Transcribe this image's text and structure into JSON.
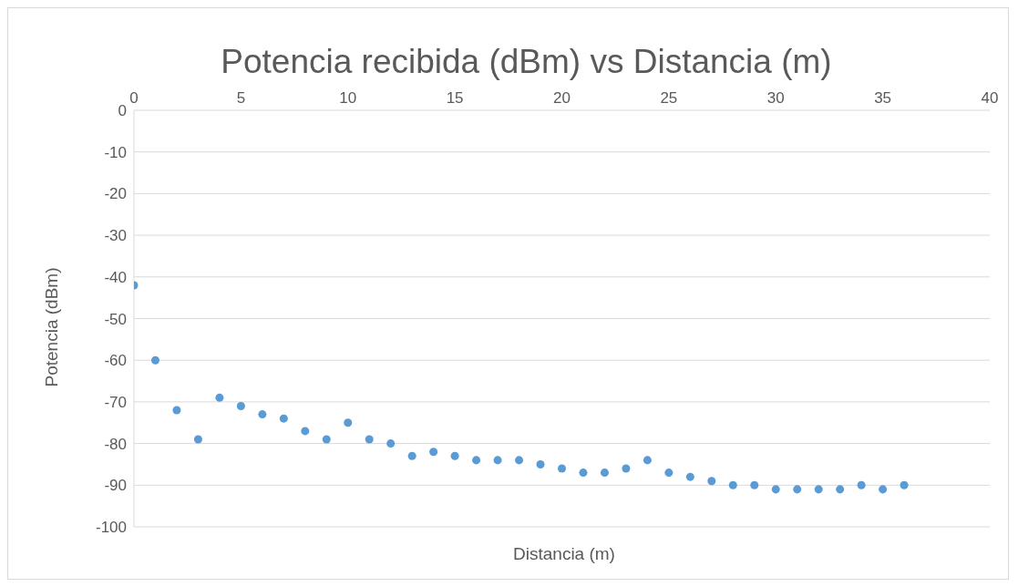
{
  "chart_data": {
    "type": "scatter",
    "title": "Potencia recibida (dBm) vs Distancia (m)",
    "xlabel": "Distancia (m)",
    "ylabel": "Potencia (dBm)",
    "x": [
      0,
      1,
      2,
      3,
      4,
      5,
      6,
      7,
      8,
      9,
      10,
      11,
      12,
      13,
      14,
      15,
      16,
      17,
      18,
      19,
      20,
      21,
      22,
      23,
      24,
      25,
      26,
      27,
      28,
      29,
      30,
      31,
      32,
      33,
      34,
      35,
      36
    ],
    "series": [
      {
        "color": "#5b9bd5",
        "values": [
          -42,
          -60,
          -72,
          -79,
          -69,
          -71,
          -73,
          -74,
          -77,
          -79,
          -75,
          -79,
          -80,
          -83,
          -82,
          -83,
          -84,
          -84,
          -84,
          -85,
          -86,
          -87,
          -87,
          -86,
          -84,
          -87,
          -88,
          -89,
          -90,
          -90,
          -91,
          -91,
          -91,
          -91,
          -90,
          -91,
          -90
        ]
      }
    ],
    "xlim": [
      0,
      40
    ],
    "xticks": [
      0,
      5,
      10,
      15,
      20,
      25,
      30,
      35,
      40
    ],
    "ylim": [
      -100,
      0
    ],
    "yticks": [
      -100,
      -90,
      -80,
      -70,
      -60,
      -50,
      -40,
      -30,
      -20,
      -10,
      0
    ],
    "grid": "y",
    "marker": "circle"
  }
}
